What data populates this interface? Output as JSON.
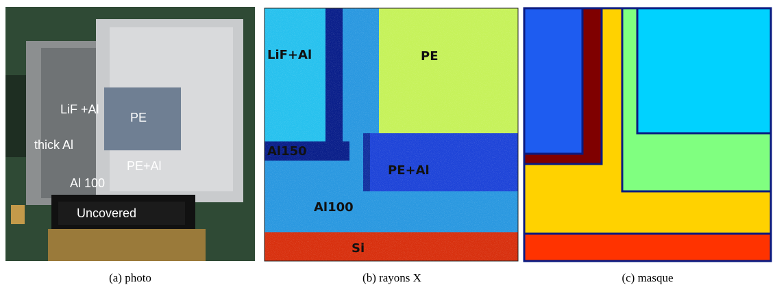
{
  "panels": [
    {
      "caption": "(a) photo",
      "labels": [
        "LiF +Al",
        "PE",
        "thick Al",
        "PE+Al",
        "Al 100",
        "Uncovered"
      ]
    },
    {
      "caption": "(b) rayons X",
      "labels": [
        "LiF+Al",
        "PE",
        "Al150",
        "PE+Al",
        "Al100",
        "Si"
      ]
    },
    {
      "caption": "(c) masque"
    }
  ]
}
